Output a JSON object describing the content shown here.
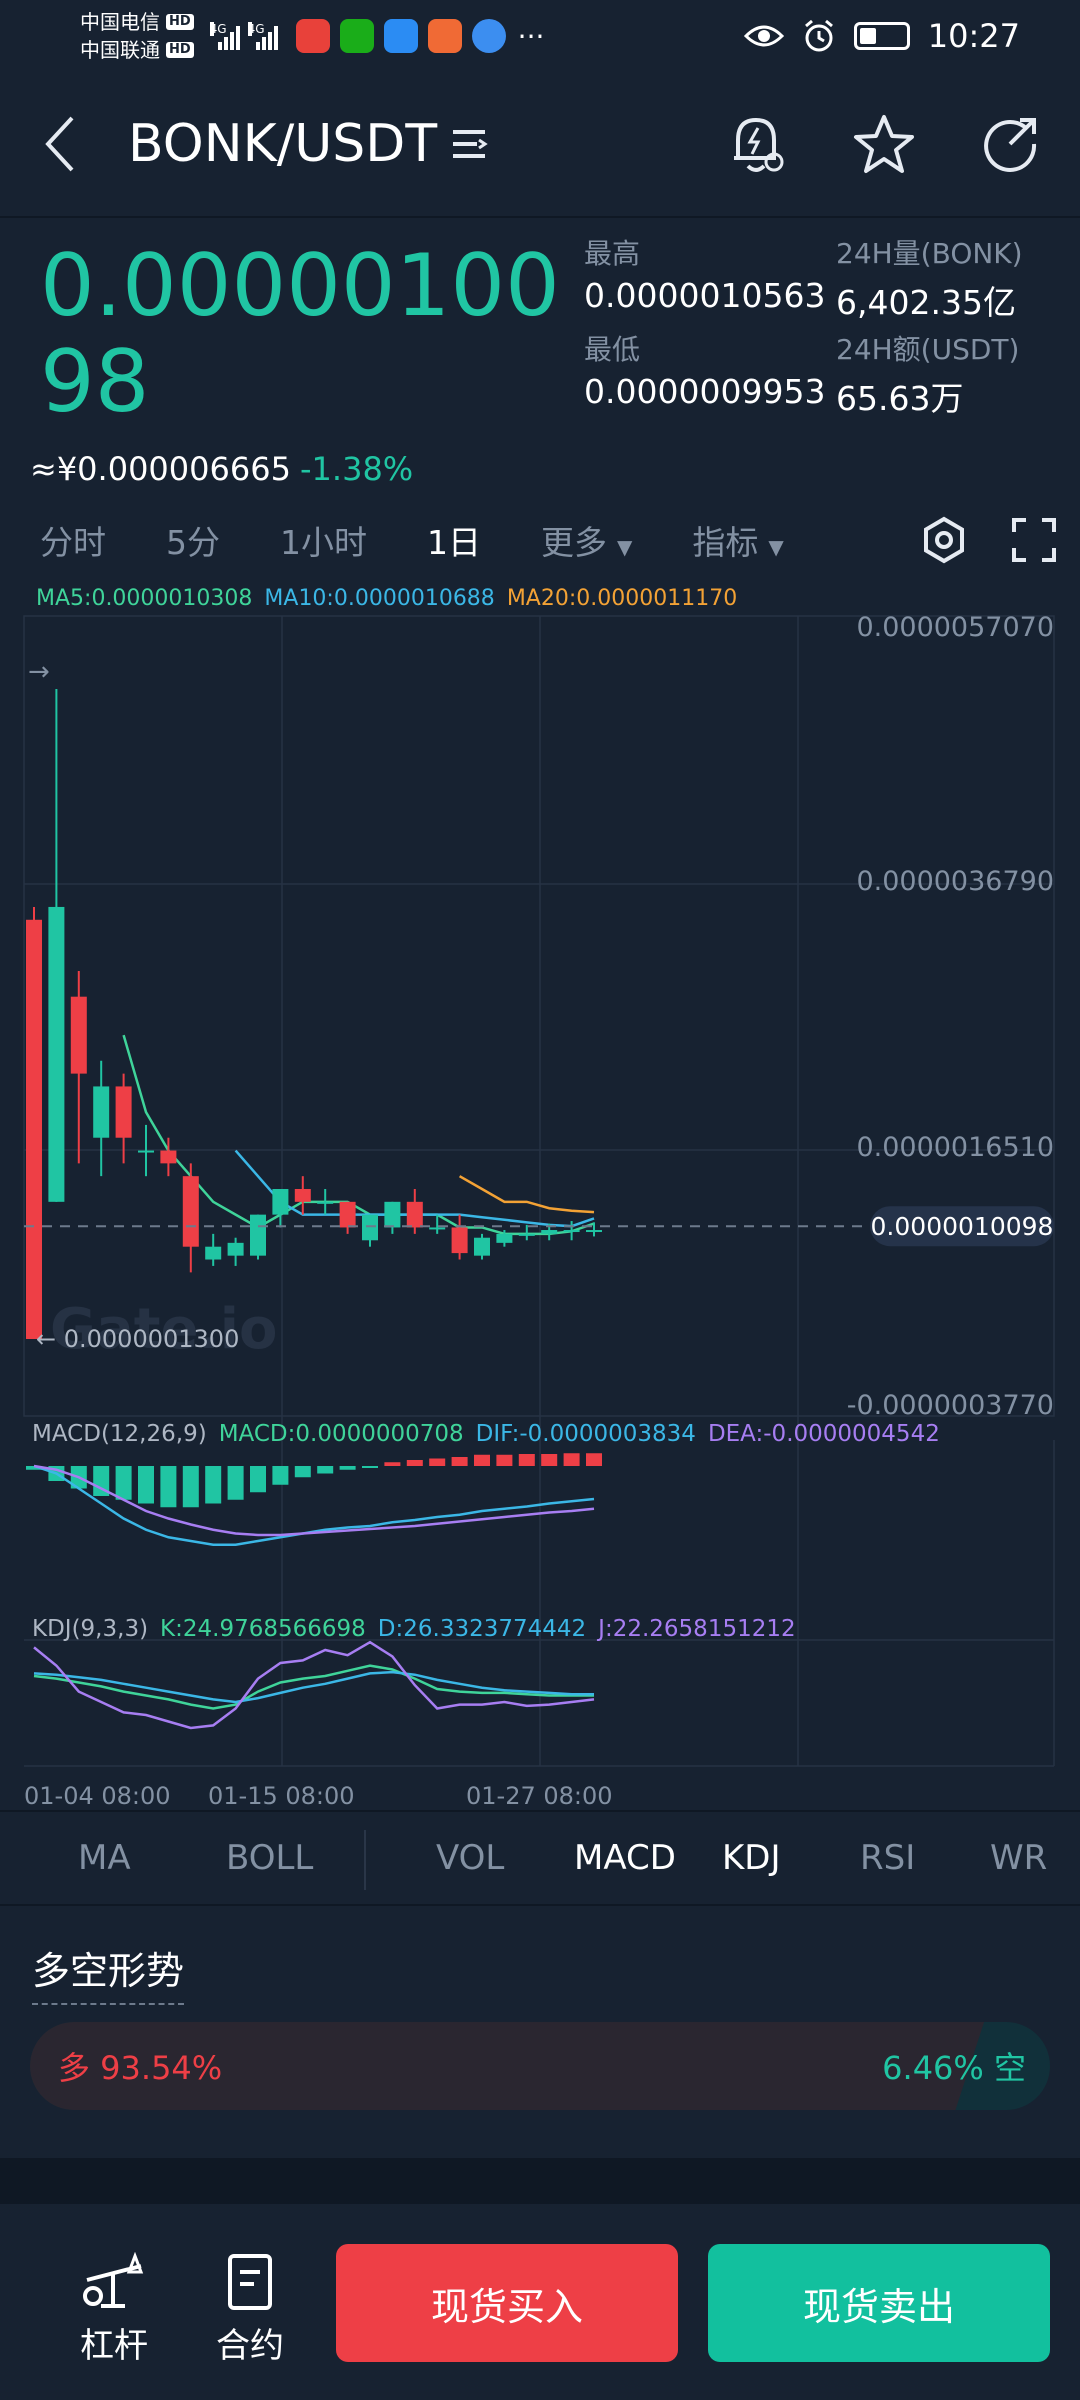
{
  "status_bar": {
    "carrier1": "中国电信",
    "carrier2": "中国联通",
    "hd": "HD",
    "net": "4G",
    "time": "10:27",
    "more": "···"
  },
  "nav": {
    "title": "BONK/USDT"
  },
  "ticker": {
    "price": "0.0000010098",
    "cny": "≈¥0.000006665",
    "change": "-1.38%",
    "high_label": "最高",
    "high": "0.0000010563",
    "low_label": "最低",
    "low": "0.0000009953",
    "vol_label": "24H量(BONK)",
    "vol": "6,402.35亿",
    "amt_label": "24H额(USDT)",
    "amt": "65.63万"
  },
  "tabs": [
    "分时",
    "5分",
    "1小时",
    "1日",
    "更多",
    "指标"
  ],
  "active_tab": "1日",
  "ma_legend": {
    "ma5": "MA5:0.0000010308",
    "ma10": "MA10:0.0000010688",
    "ma20": "MA20:0.0000011170"
  },
  "chart_data": {
    "type": "candlestick",
    "y_ticks": [
      "0.0000057070",
      "0.0000036790",
      "0.0000016510",
      "-0.0000003770"
    ],
    "y_tick_values": [
      5.707e-06,
      3.679e-06,
      1.651e-06,
      -3.77e-07
    ],
    "current_price_label": "0.0000010098",
    "current_price": 1.0098e-06,
    "min_label": "0.0000001300",
    "min_value": 1.3e-07,
    "watermark": "Gate.io",
    "x_labels": [
      "01-04 08:00",
      "01-15 08:00",
      "01-27 08:00"
    ],
    "candles": [
      {
        "o": 3.4e-06,
        "h": 3.5e-06,
        "l": 1.3e-07,
        "c": 1.3e-07
      },
      {
        "o": 1.2e-06,
        "h": 5.2e-06,
        "l": 1.2e-06,
        "c": 3.5e-06
      },
      {
        "o": 2.8e-06,
        "h": 3e-06,
        "l": 1.5e-06,
        "c": 2.2e-06
      },
      {
        "o": 1.7e-06,
        "h": 2.3e-06,
        "l": 1.4e-06,
        "c": 2.1e-06
      },
      {
        "o": 2.1e-06,
        "h": 2.2e-06,
        "l": 1.5e-06,
        "c": 1.7e-06
      },
      {
        "o": 1.6e-06,
        "h": 1.8e-06,
        "l": 1.4e-06,
        "c": 1.6e-06
      },
      {
        "o": 1.6e-06,
        "h": 1.7e-06,
        "l": 1.4e-06,
        "c": 1.5e-06
      },
      {
        "o": 1.4e-06,
        "h": 1.5e-06,
        "l": 6.5e-07,
        "c": 8.5e-07
      },
      {
        "o": 7.5e-07,
        "h": 9.5e-07,
        "l": 7e-07,
        "c": 8.5e-07
      },
      {
        "o": 7.8e-07,
        "h": 9.2e-07,
        "l": 7e-07,
        "c": 8.8e-07
      },
      {
        "o": 7.8e-07,
        "h": 1.1e-06,
        "l": 7.5e-07,
        "c": 1.1e-06
      },
      {
        "o": 1.1e-06,
        "h": 1.3e-06,
        "l": 1e-06,
        "c": 1.3e-06
      },
      {
        "o": 1.3e-06,
        "h": 1.4e-06,
        "l": 1.1e-06,
        "c": 1.2e-06
      },
      {
        "o": 1.2e-06,
        "h": 1.3e-06,
        "l": 1.1e-06,
        "c": 1.2e-06
      },
      {
        "o": 1.2e-06,
        "h": 1.2e-06,
        "l": 9.5e-07,
        "c": 1e-06
      },
      {
        "o": 9e-07,
        "h": 1.1e-06,
        "l": 8.5e-07,
        "c": 1.1e-06
      },
      {
        "o": 1e-06,
        "h": 1.2e-06,
        "l": 9.5e-07,
        "c": 1.2e-06
      },
      {
        "o": 1.2e-06,
        "h": 1.3e-06,
        "l": 9.5e-07,
        "c": 1e-06
      },
      {
        "o": 1e-06,
        "h": 1.1e-06,
        "l": 9.5e-07,
        "c": 1e-06
      },
      {
        "o": 1e-06,
        "h": 1.1e-06,
        "l": 7.5e-07,
        "c": 8e-07
      },
      {
        "o": 7.8e-07,
        "h": 9.5e-07,
        "l": 7.5e-07,
        "c": 9.2e-07
      },
      {
        "o": 8.8e-07,
        "h": 9.8e-07,
        "l": 8.5e-07,
        "c": 9.5e-07
      },
      {
        "o": 9.5e-07,
        "h": 1.02e-06,
        "l": 9e-07,
        "c": 9.5e-07
      },
      {
        "o": 9.5e-07,
        "h": 1.03e-06,
        "l": 9e-07,
        "c": 9.8e-07
      },
      {
        "o": 9.8e-07,
        "h": 1.05e-06,
        "l": 9e-07,
        "c": 9.8e-07
      },
      {
        "o": 9.8e-07,
        "h": 1.04e-06,
        "l": 9.3e-07,
        "c": 9.8e-07
      }
    ],
    "ma5": [
      null,
      null,
      null,
      null,
      2.5e-06,
      1.9e-06,
      1.6e-06,
      1.4e-06,
      1.2e-06,
      1.1e-06,
      1e-06,
      1.1e-06,
      1.2e-06,
      1.2e-06,
      1.2e-06,
      1.1e-06,
      1.1e-06,
      1.1e-06,
      1.1e-06,
      1e-06,
      1e-06,
      9.5e-07,
      9.5e-07,
      9.5e-07,
      9.7e-07,
      1.03e-06
    ],
    "ma10": [
      null,
      null,
      null,
      null,
      null,
      null,
      null,
      null,
      null,
      1.6e-06,
      1.4e-06,
      1.2e-06,
      1.1e-06,
      1.1e-06,
      1.1e-06,
      1.1e-06,
      1.1e-06,
      1.1e-06,
      1.1e-06,
      1.1e-06,
      1.08e-06,
      1.06e-06,
      1.04e-06,
      1.02e-06,
      1.01e-06,
      1.07e-06
    ],
    "ma20": [
      null,
      null,
      null,
      null,
      null,
      null,
      null,
      null,
      null,
      null,
      null,
      null,
      null,
      null,
      null,
      null,
      null,
      null,
      null,
      1.4e-06,
      1.3e-06,
      1.2e-06,
      1.2e-06,
      1.15e-06,
      1.13e-06,
      1.12e-06
    ],
    "macd_legend": {
      "name": "MACD(12,26,9)",
      "macd": "MACD:0.0000000708",
      "dif": "DIF:-0.0000003834",
      "dea": "DEA:-0.0000004542"
    },
    "macd_hist": [
      -0.05,
      -0.2,
      -0.3,
      -0.4,
      -0.45,
      -0.5,
      -0.55,
      -0.55,
      -0.5,
      -0.45,
      -0.35,
      -0.25,
      -0.15,
      -0.1,
      -0.05,
      -0.02,
      0.05,
      0.08,
      0.1,
      0.12,
      0.15,
      0.15,
      0.16,
      0.16,
      0.17,
      0.17
    ],
    "macd_dif": [
      0.0,
      -0.1,
      -0.3,
      -0.5,
      -0.7,
      -0.85,
      -0.95,
      -1.0,
      -1.05,
      -1.05,
      -1.0,
      -0.95,
      -0.9,
      -0.85,
      -0.82,
      -0.8,
      -0.75,
      -0.72,
      -0.68,
      -0.65,
      -0.6,
      -0.57,
      -0.54,
      -0.5,
      -0.47,
      -0.44
    ],
    "macd_dea": [
      0.0,
      -0.05,
      -0.15,
      -0.3,
      -0.45,
      -0.6,
      -0.7,
      -0.78,
      -0.85,
      -0.9,
      -0.92,
      -0.92,
      -0.9,
      -0.88,
      -0.86,
      -0.84,
      -0.82,
      -0.8,
      -0.77,
      -0.74,
      -0.71,
      -0.68,
      -0.65,
      -0.62,
      -0.6,
      -0.57
    ],
    "kdj_legend": {
      "name": "KDJ(9,3,3)",
      "k": "K:24.9768566698",
      "d": "D:26.3323774442",
      "j": "J:22.2658151212"
    },
    "kdj_k": [
      40,
      38,
      35,
      32,
      28,
      25,
      22,
      18,
      15,
      18,
      28,
      35,
      38,
      40,
      44,
      48,
      45,
      38,
      30,
      28,
      27,
      27,
      26,
      25,
      25,
      25
    ],
    "kdj_d": [
      42,
      41,
      39,
      37,
      34,
      31,
      28,
      25,
      22,
      20,
      23,
      27,
      31,
      34,
      38,
      42,
      43,
      41,
      37,
      34,
      31,
      29,
      28,
      27,
      26,
      26
    ],
    "kdj_j": [
      62,
      48,
      28,
      20,
      12,
      10,
      5,
      0,
      2,
      15,
      38,
      50,
      52,
      60,
      56,
      66,
      55,
      33,
      15,
      18,
      18,
      20,
      17,
      18,
      20,
      22
    ]
  },
  "indicators": [
    "MA",
    "BOLL",
    "VOL",
    "MACD",
    "KDJ",
    "RSI",
    "WR"
  ],
  "active_indicators": [
    "MACD",
    "KDJ"
  ],
  "sentiment": {
    "title": "多空形势",
    "long_label": "多 93.54%",
    "short_label": "6.46% 空",
    "long_pct": 93.54
  },
  "bottom": {
    "leverage": "杠杆",
    "contract": "合约",
    "buy": "现货买入",
    "sell": "现货卖出"
  },
  "colors": {
    "up": "#20c5a3",
    "down": "#ee3f46",
    "ma5": "#3fd49a",
    "ma10": "#3bb7e6",
    "ma20": "#f3a235",
    "dea": "#a77ef2"
  }
}
